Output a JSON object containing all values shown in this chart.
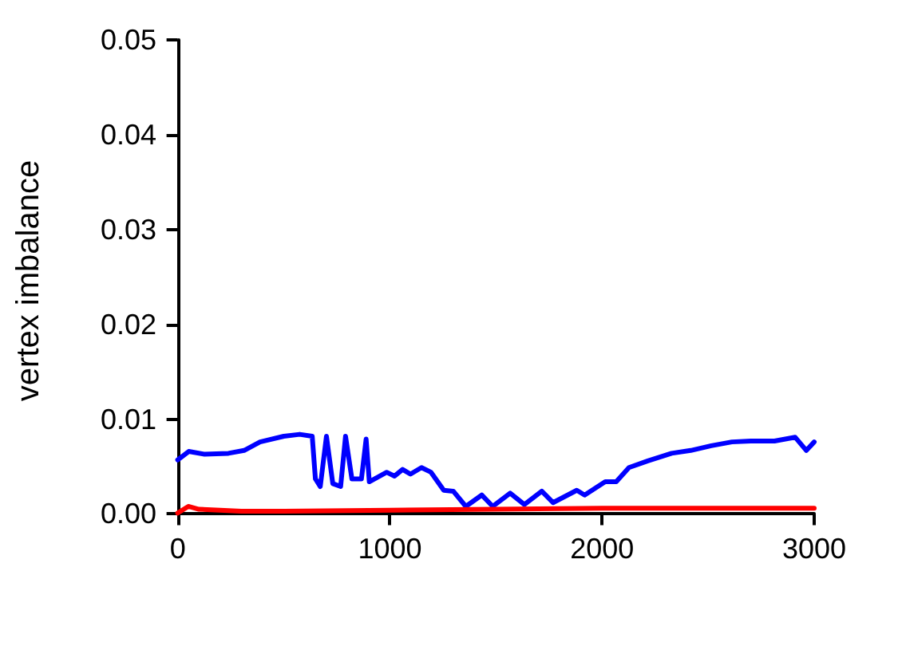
{
  "chart_data": {
    "type": "line",
    "ylabel": "vertex imbalance",
    "xlim": [
      -40,
      3000
    ],
    "xticks": [
      0,
      1000,
      2000,
      3000
    ],
    "ylim": [
      -0.0008,
      0.05
    ],
    "yticks": [
      {
        "value": 0,
        "label": "0.00"
      },
      {
        "value": 0.01,
        "label": "0.01"
      },
      {
        "value": 0.02,
        "label": "0.02"
      },
      {
        "value": 0.03,
        "label": "0.03"
      },
      {
        "value": 0.04,
        "label": "0.04"
      },
      {
        "value": 0.05,
        "label": "0.05"
      }
    ],
    "grid": false,
    "marker": "none",
    "line_style": "solid",
    "series": [
      {
        "color": "#0000ff",
        "x": [
          0,
          52,
          127,
          239,
          313,
          388,
          500,
          575,
          634,
          649,
          672,
          701,
          731,
          768,
          791,
          821,
          866,
          888,
          903,
          985,
          1022,
          1060,
          1097,
          1149,
          1194,
          1254,
          1299,
          1358,
          1433,
          1485,
          1567,
          1634,
          1716,
          1769,
          1881,
          1918,
          2015,
          2067,
          2127,
          2216,
          2328,
          2418,
          2515,
          2612,
          2701,
          2813,
          2910,
          2963,
          3000
        ],
        "values": [
          0.0057,
          0.0066,
          0.0063,
          0.0064,
          0.0067,
          0.0076,
          0.0082,
          0.0084,
          0.0082,
          0.0037,
          0.0029,
          0.0082,
          0.0032,
          0.0029,
          0.0082,
          0.0037,
          0.0037,
          0.0079,
          0.0034,
          0.0044,
          0.004,
          0.0047,
          0.0042,
          0.0049,
          0.0044,
          0.0025,
          0.0024,
          0.0008,
          0.002,
          0.0008,
          0.0022,
          0.001,
          0.0024,
          0.0012,
          0.0025,
          0.002,
          0.0034,
          0.0034,
          0.0049,
          0.0056,
          0.0064,
          0.0067,
          0.0072,
          0.0076,
          0.0077,
          0.0077,
          0.0081,
          0.0067,
          0.0076
        ]
      },
      {
        "color": "#ff0000",
        "x": [
          0,
          50,
          100,
          200,
          300,
          500,
          1000,
          1500,
          2000,
          2500,
          3000
        ],
        "values": [
          0.0001,
          0.0008,
          0.0005,
          0.0004,
          0.0003,
          0.0003,
          0.0004,
          0.0005,
          0.0006,
          0.0006,
          0.0006
        ]
      }
    ]
  }
}
